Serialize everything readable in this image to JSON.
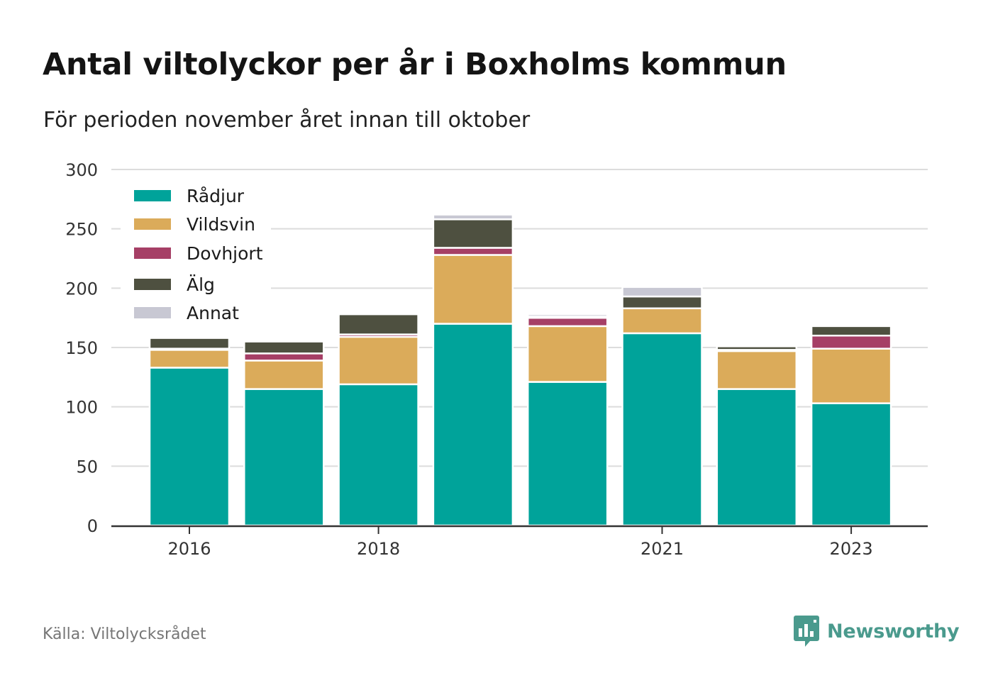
{
  "title": "Antal viltolyckor per år i Boxholms kommun",
  "subtitle": "För perioden november året innan till oktober",
  "source": "Källa: Viltolycksrådet",
  "brand": {
    "name": "Newsworthy",
    "icon": "newsworthy-logo-icon",
    "color": "#4a9a8d"
  },
  "chart_data": {
    "type": "bar",
    "stacked": true,
    "x": [
      2016,
      2017,
      2018,
      2019,
      2020,
      2021,
      2022,
      2023
    ],
    "x_tick_labels": [
      {
        "x": 2016,
        "label": "2016"
      },
      {
        "x": 2018,
        "label": "2018"
      },
      {
        "x": 2021,
        "label": "2021"
      },
      {
        "x": 2023,
        "label": "2023"
      }
    ],
    "series": [
      {
        "name": "Rådjur",
        "color": "#00a39a",
        "values": [
          133,
          115,
          119,
          170,
          121,
          162,
          115,
          103
        ]
      },
      {
        "name": "Vildsvin",
        "color": "#dbab5a",
        "values": [
          15,
          24,
          40,
          58,
          47,
          21,
          32,
          46
        ]
      },
      {
        "name": "Dovhjort",
        "color": "#a63f66",
        "values": [
          1,
          6,
          2,
          6,
          7,
          0,
          1,
          11
        ]
      },
      {
        "name": "Älg",
        "color": "#4e5040",
        "values": [
          9,
          10,
          17,
          24,
          1,
          10,
          3,
          8
        ]
      },
      {
        "name": "Annat",
        "color": "#c8c8d3",
        "values": [
          0,
          0,
          0,
          4,
          2,
          8,
          1,
          0
        ]
      }
    ],
    "ylim": [
      0,
      300
    ],
    "yticks": [
      0,
      50,
      100,
      150,
      200,
      250,
      300
    ],
    "grid": true,
    "legend": "top-left",
    "xlabel": "",
    "ylabel": ""
  }
}
